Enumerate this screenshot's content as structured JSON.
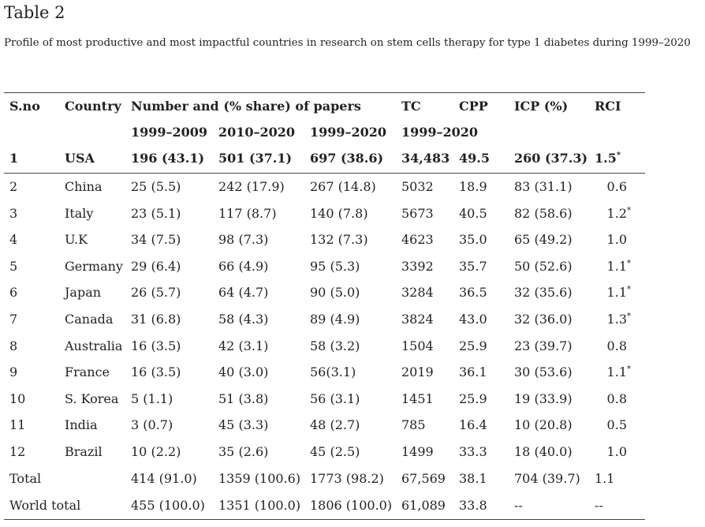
{
  "title": "Table 2",
  "caption": "Profile of most productive and most impactful countries in research on stem cells therapy for type 1 diabetes during 1999–2020",
  "table": {
    "header": {
      "row1": [
        "S.no",
        "Country",
        "Number and (% share) of papers",
        "TC",
        "CPP",
        "ICP (%)",
        "RCI"
      ],
      "row2": [
        "1999–2009",
        "2010–2020",
        "1999–2020",
        "1999–2020"
      ],
      "lead_row": {
        "cells": [
          "1",
          "USA",
          "196 (43.1)",
          "501 (37.1)",
          "697 (38.6)",
          "34,483",
          "49.5",
          "260 (37.3)",
          "1.5"
        ],
        "note": "*"
      }
    },
    "rows": [
      {
        "cells": [
          "2",
          "China",
          "25 (5.5)",
          "242 (17.9)",
          "267 (14.8)",
          "5032",
          "18.9",
          "83 (31.1)",
          "0.6"
        ]
      },
      {
        "cells": [
          "3",
          "Italy",
          "23 (5.1)",
          "117 (8.7)",
          "140 (7.8)",
          "5673",
          "40.5",
          "82 (58.6)",
          "1.2"
        ],
        "note": "*"
      },
      {
        "cells": [
          "4",
          "U.K",
          "34 (7.5)",
          "98 (7.3)",
          "132 (7.3)",
          "4623",
          "35.0",
          "65 (49.2)",
          "1.0"
        ]
      },
      {
        "cells": [
          "5",
          "Germany",
          "29 (6.4)",
          "66 (4.9)",
          "95 (5.3)",
          "3392",
          "35.7",
          "50 (52.6)",
          "1.1"
        ],
        "note": "*"
      },
      {
        "cells": [
          "6",
          "Japan",
          "26 (5.7)",
          "64 (4.7)",
          "90 (5.0)",
          "3284",
          "36.5",
          "32 (35.6)",
          "1.1"
        ],
        "note": "*"
      },
      {
        "cells": [
          "7",
          "Canada",
          "31 (6.8)",
          "58 (4.3)",
          "89 (4.9)",
          "3824",
          "43.0",
          "32 (36.0)",
          "1.3"
        ],
        "note": "*"
      },
      {
        "cells": [
          "8",
          "Australia",
          "16 (3.5)",
          "42 (3.1)",
          "58 (3.2)",
          "1504",
          "25.9",
          "23 (39.7)",
          "0.8"
        ]
      },
      {
        "cells": [
          "9",
          "France",
          "16 (3.5)",
          "40 (3.0)",
          "56(3.1)",
          "2019",
          "36.1",
          "30 (53.6)",
          "1.1"
        ],
        "note": "*"
      },
      {
        "cells": [
          "10",
          "S. Korea",
          "5 (1.1)",
          "51 (3.8)",
          "56 (3.1)",
          "1451",
          "25.9",
          "19 (33.9)",
          "0.8"
        ]
      },
      {
        "cells": [
          "11",
          "India",
          "3 (0.7)",
          "45 (3.3)",
          "48 (2.7)",
          "785",
          "16.4",
          "10 (20.8)",
          "0.5"
        ]
      },
      {
        "cells": [
          "12",
          "Brazil",
          "10 (2.2)",
          "35 (2.6)",
          "45 (2.5)",
          "1499",
          "33.3",
          "18 (40.0)",
          "1.0"
        ]
      }
    ],
    "totals": [
      {
        "label": "Total",
        "cells": [
          "414 (91.0)",
          "1359 (100.6)",
          "1773 (98.2)",
          "67,569",
          "38.1",
          "704 (39.7)",
          "1.1"
        ]
      },
      {
        "label": "World total",
        "cells": [
          "455 (100.0)",
          "1351 (100.0)",
          "1806 (100.0)",
          "61,089",
          "33.8",
          "--",
          "--"
        ]
      }
    ]
  }
}
